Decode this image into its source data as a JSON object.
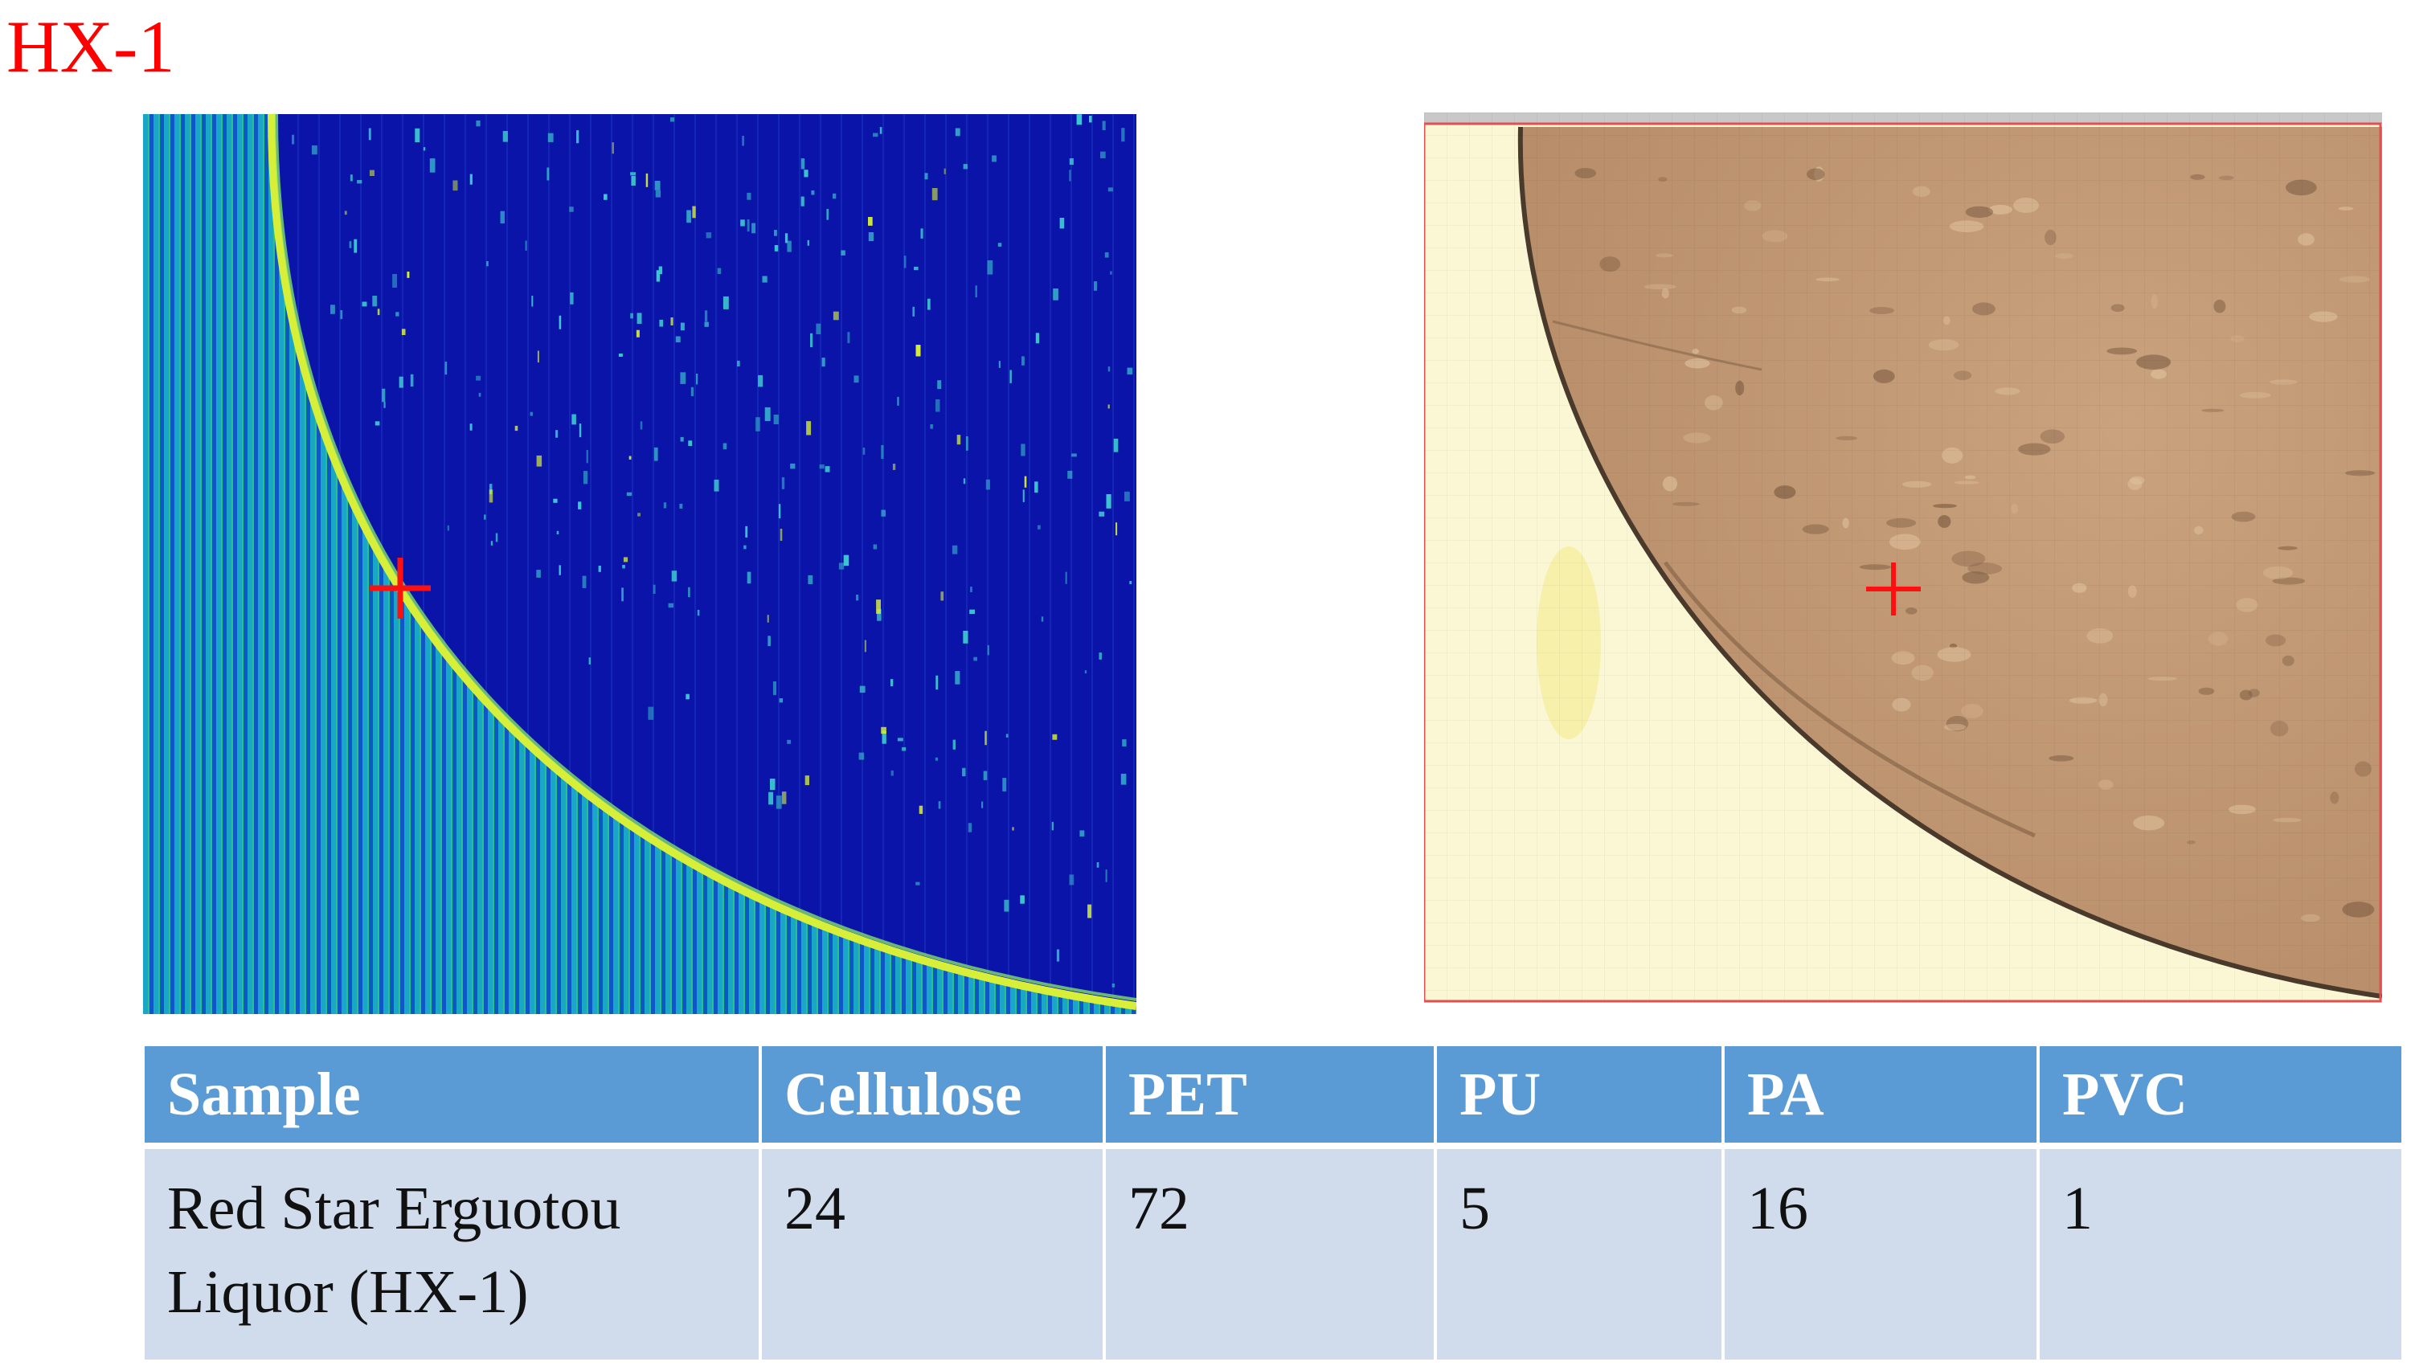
{
  "title": "HX-1",
  "images": {
    "left": {
      "description": "hyperspectral false-color map",
      "colors": {
        "background": "#0a14a8",
        "stripe_a": "#1aa6c8",
        "stripe_b": "#0d58c4",
        "edge": "#d8ef3a",
        "particles": "#3cc8d0",
        "marker": "#ff1010"
      }
    },
    "right": {
      "description": "optical microscope image",
      "colors": {
        "filter_surface": "#c49a74",
        "background_area": "#fbf7d4",
        "edge": "#4a3a2c",
        "frame_top": "#c8c8c8",
        "frame_border": "#e05050",
        "marker": "#ff1010"
      }
    }
  },
  "table": {
    "headers": [
      "Sample",
      "Cellulose",
      "PET",
      "PU",
      "PA",
      "PVC"
    ],
    "row": {
      "sample_line1": "Red Star Erguotou",
      "sample_line2": "Liquor (HX-1)",
      "cellulose": "24",
      "pet": "72",
      "pu": "5",
      "pa": "16",
      "pvc": "1"
    },
    "colors": {
      "header_bg": "#5b9bd5",
      "body_bg": "#d0dcec"
    }
  }
}
